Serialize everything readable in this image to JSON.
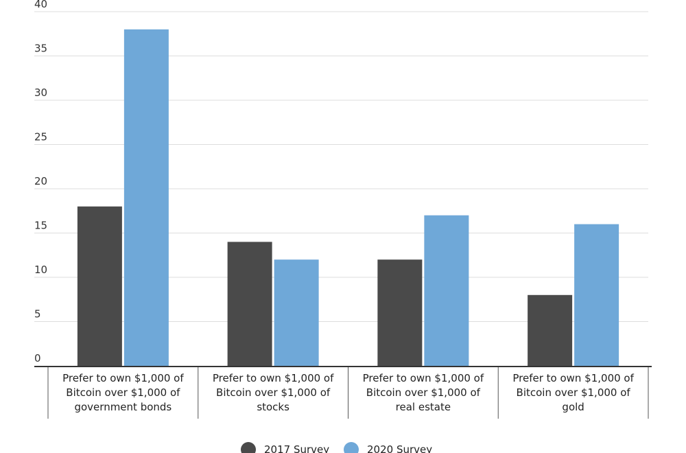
{
  "chart_data": {
    "type": "bar",
    "title": "",
    "xlabel": "",
    "ylabel": "",
    "ylim": [
      0,
      40
    ],
    "yticks": [
      0,
      5,
      10,
      15,
      20,
      25,
      30,
      35,
      40
    ],
    "grid": true,
    "legend_position": "bottom-center",
    "categories": [
      [
        "Prefer to own $1,000 of",
        "Bitcoin over $1,000 of",
        "government bonds"
      ],
      [
        "Prefer to own $1,000 of",
        "Bitcoin over $1,000 of",
        "stocks"
      ],
      [
        "Prefer to own $1,000 of",
        "Bitcoin over $1,000 of",
        "real estate"
      ],
      [
        "Prefer to own $1,000 of",
        "Bitcoin over $1,000 of",
        "gold"
      ]
    ],
    "series": [
      {
        "name": "2017 Survey",
        "color": "#4a4a4a",
        "values": [
          18,
          14,
          12,
          8
        ]
      },
      {
        "name": "2020 Survey",
        "color": "#6fa8d8",
        "values": [
          38,
          12,
          17,
          16
        ]
      }
    ]
  }
}
